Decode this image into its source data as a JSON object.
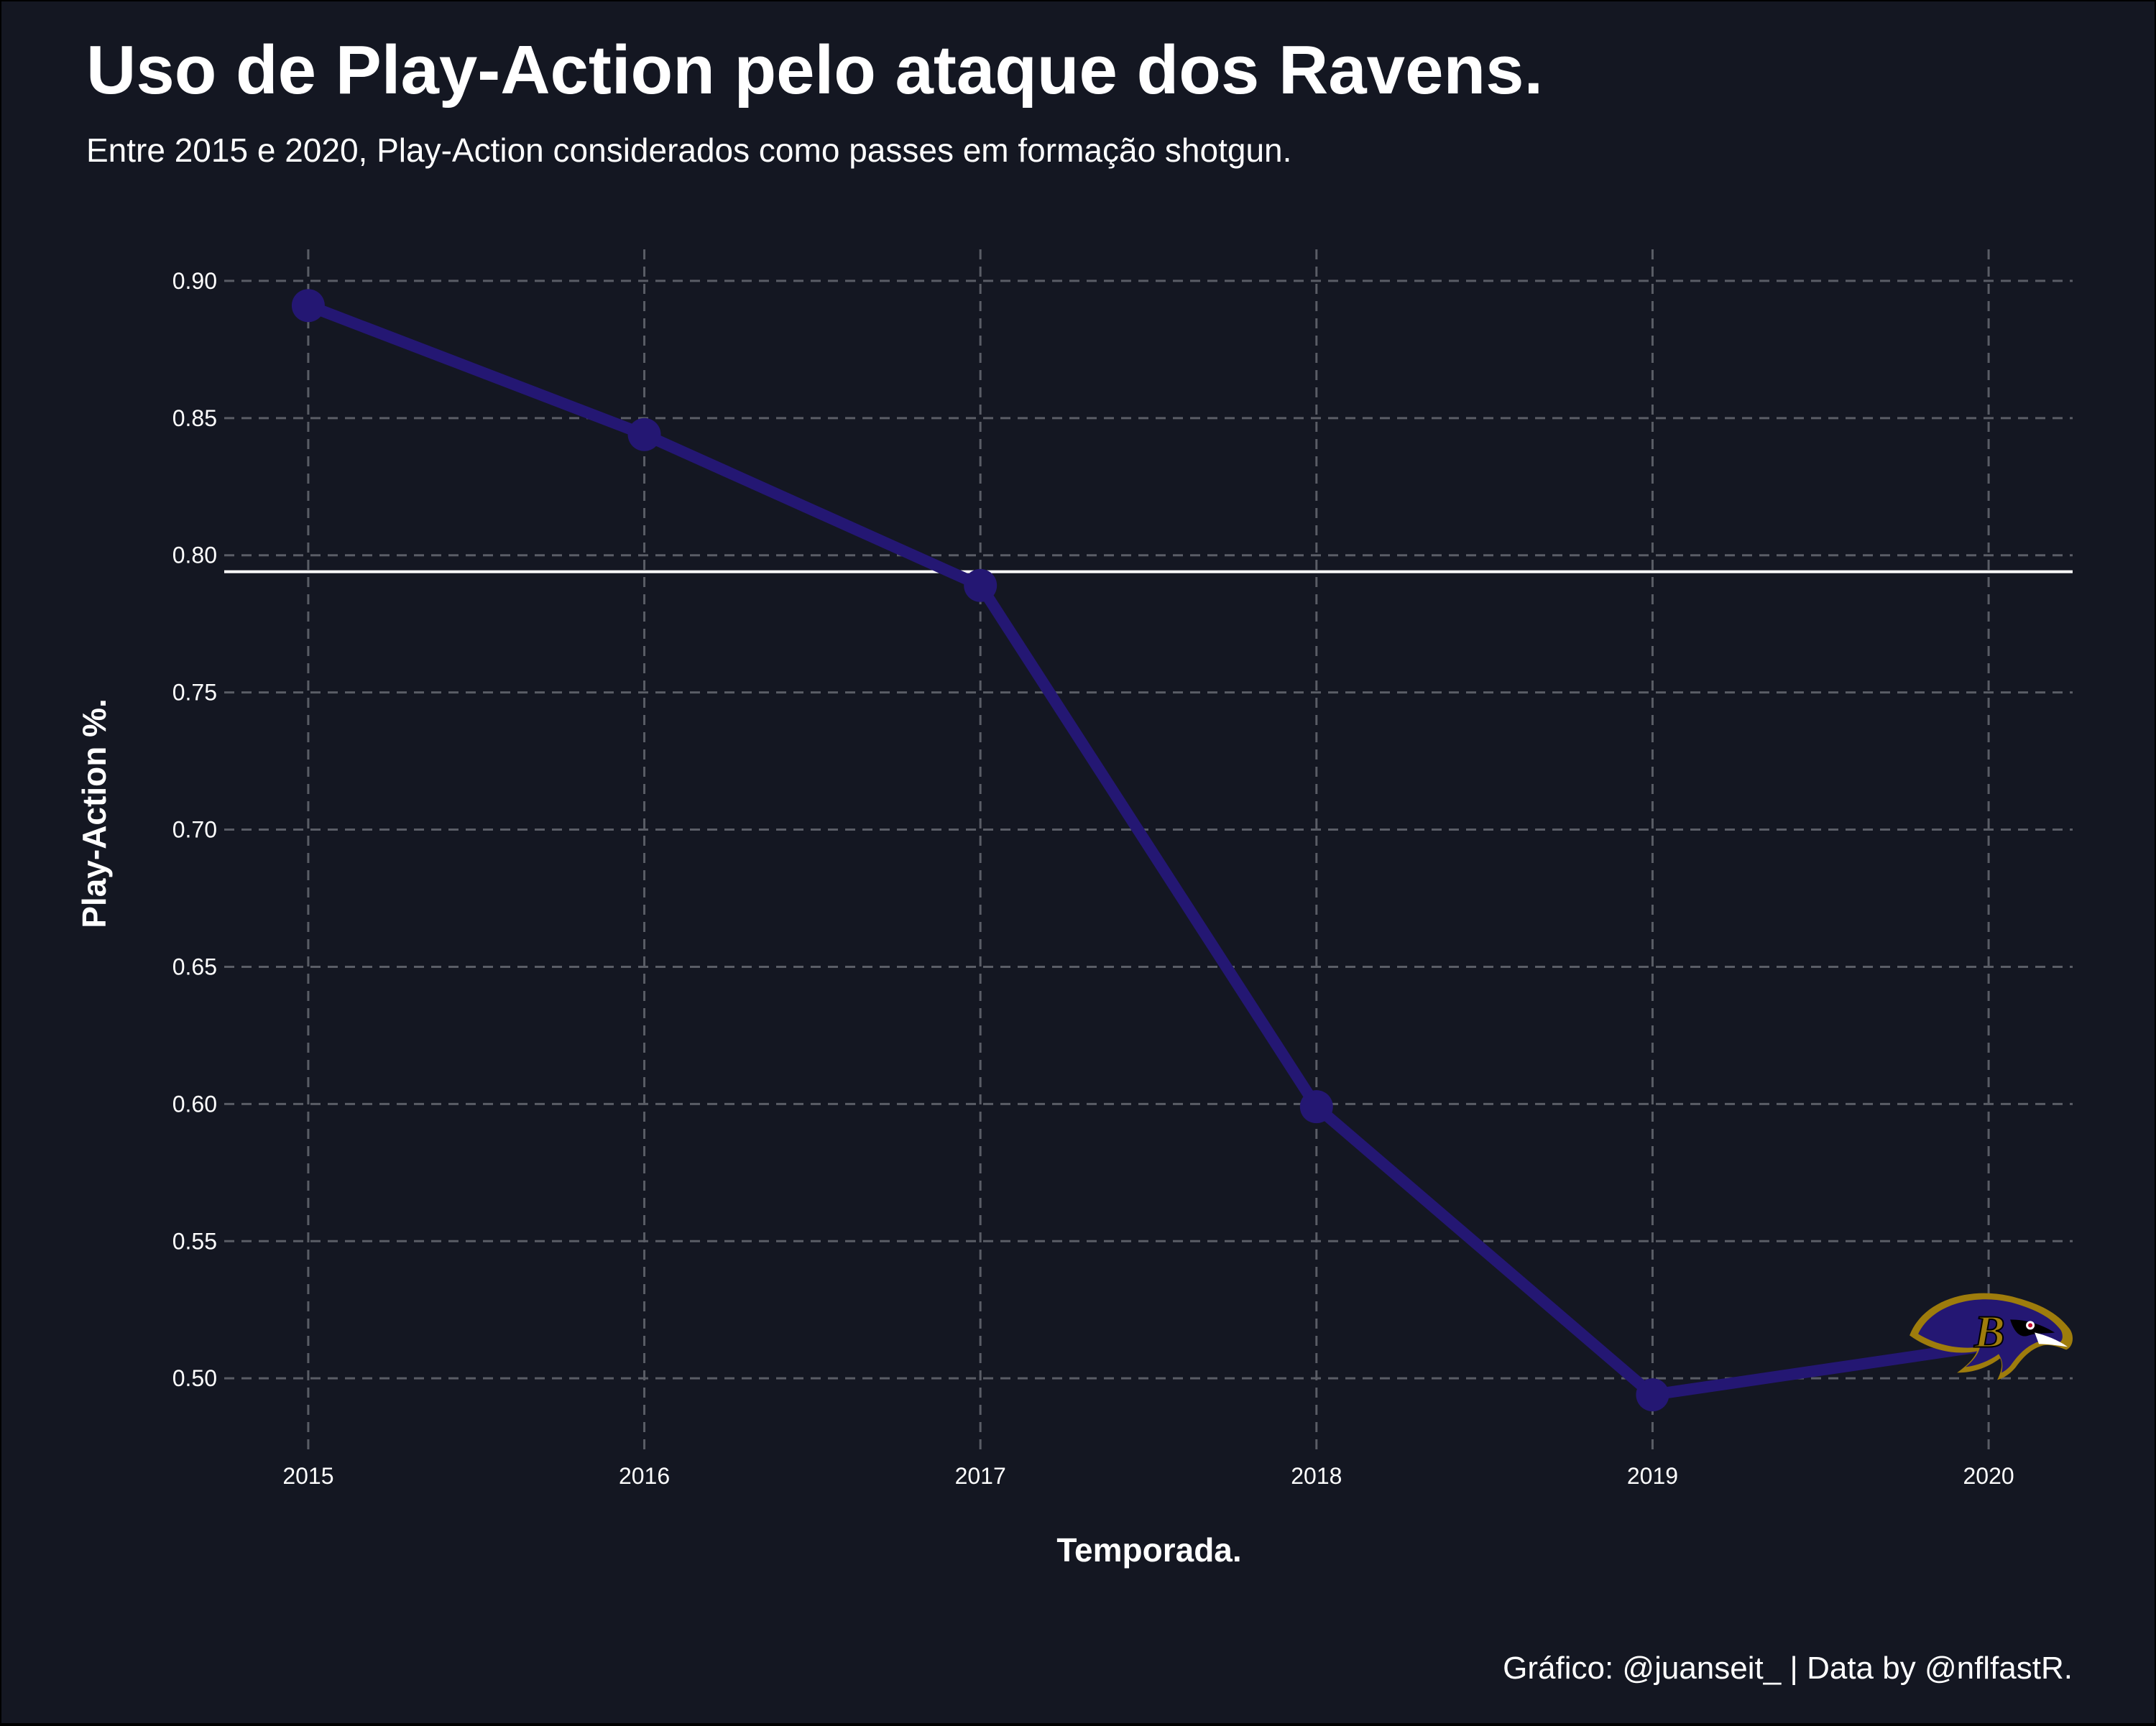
{
  "chart_data": {
    "type": "line",
    "title": "Uso de Play-Action pelo ataque dos Ravens.",
    "subtitle": "Entre 2015 e 2020, Play-Action considerados como passes em formação shotgun.",
    "xlabel": "Temporada.",
    "ylabel": "Play-Action %.",
    "caption": "Gráfico: @juanseit_ | Data by @nflfastR.",
    "x": [
      2015,
      2016,
      2017,
      2018,
      2019,
      2020
    ],
    "x_tick_labels": [
      "2015",
      "2016",
      "2017",
      "2018",
      "2019",
      "2020"
    ],
    "y_ticks": [
      0.5,
      0.55,
      0.6,
      0.65,
      0.7,
      0.75,
      0.8,
      0.85,
      0.9
    ],
    "y_tick_labels": [
      "0.50",
      "0.55",
      "0.60",
      "0.65",
      "0.70",
      "0.75",
      "0.80",
      "0.85",
      "0.90"
    ],
    "xlim": [
      2014.75,
      2020.25
    ],
    "ylim": [
      0.4715,
      0.9115
    ],
    "series": [
      {
        "values": [
          0.891,
          0.844,
          0.789,
          0.599,
          0.494,
          0.512
        ],
        "color": "#241773"
      }
    ],
    "reference_line": {
      "y": 0.794,
      "color": "#FFFFFF"
    },
    "grid": true,
    "grid_color": "#5A5D66",
    "background_color": "#141722",
    "text_color": "#FFFFFF",
    "logo": {
      "name": "baltimore-ravens-logo",
      "at_point": 5,
      "colors": [
        "#241773",
        "#9E7C0C",
        "#000000",
        "#FFFFFF"
      ]
    }
  }
}
